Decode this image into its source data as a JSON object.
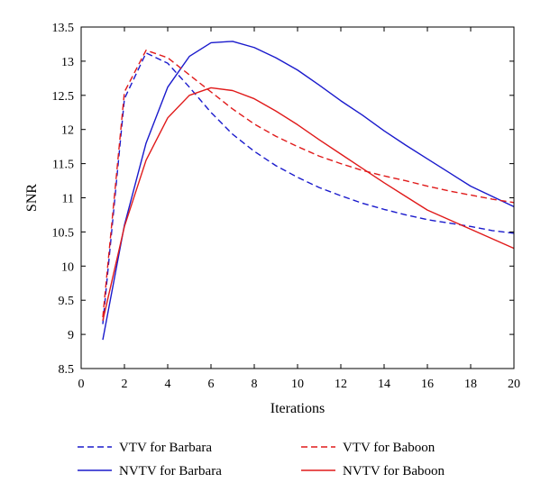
{
  "chart_data": {
    "type": "line",
    "title": "",
    "xlabel": "Iterations",
    "ylabel": "SNR",
    "xlim": [
      0,
      20
    ],
    "ylim": [
      8.5,
      13.5
    ],
    "xticks": [
      0,
      2,
      4,
      6,
      8,
      10,
      12,
      14,
      16,
      18,
      20
    ],
    "yticks": [
      8.5,
      9,
      9.5,
      10,
      10.5,
      11,
      11.5,
      12,
      12.5,
      13,
      13.5
    ],
    "ytick_labels": [
      "8.5",
      "9",
      "9.5",
      "10",
      "10.5",
      "11",
      "11.5",
      "12",
      "12.5",
      "13",
      "13.5"
    ],
    "grid": false,
    "legend_position": "bottom",
    "x": [
      1,
      2,
      3,
      4,
      5,
      6,
      7,
      8,
      9,
      10,
      11,
      12,
      13,
      14,
      15,
      16,
      17,
      18,
      19,
      20
    ],
    "series": [
      {
        "name": "VTV for Barbara",
        "color": "#1a1acc",
        "dash": "dashed",
        "values": [
          9.15,
          12.45,
          13.12,
          12.97,
          12.62,
          12.25,
          11.93,
          11.68,
          11.47,
          11.3,
          11.15,
          11.03,
          10.92,
          10.83,
          10.75,
          10.68,
          10.63,
          10.58,
          10.52,
          10.48
        ]
      },
      {
        "name": "NVTV for Barbara",
        "color": "#1a1acc",
        "dash": "solid",
        "values": [
          8.92,
          10.6,
          11.8,
          12.62,
          13.07,
          13.27,
          13.29,
          13.2,
          13.05,
          12.87,
          12.65,
          12.42,
          12.21,
          11.98,
          11.77,
          11.57,
          11.37,
          11.17,
          11.02,
          10.87
        ]
      },
      {
        "name": "VTV for Baboon",
        "color": "#e01a1a",
        "dash": "dashed",
        "values": [
          9.25,
          12.55,
          13.16,
          13.05,
          12.8,
          12.55,
          12.3,
          12.08,
          11.9,
          11.75,
          11.61,
          11.5,
          11.4,
          11.32,
          11.25,
          11.17,
          11.1,
          11.04,
          10.98,
          10.93
        ]
      },
      {
        "name": "NVTV for Baboon",
        "color": "#e01a1a",
        "dash": "solid",
        "values": [
          9.2,
          10.58,
          11.55,
          12.17,
          12.5,
          12.61,
          12.57,
          12.45,
          12.27,
          12.07,
          11.85,
          11.64,
          11.43,
          11.22,
          11.02,
          10.82,
          10.68,
          10.54,
          10.4,
          10.26
        ]
      }
    ],
    "legend": [
      {
        "label": "VTV for Barbara",
        "color": "#1a1acc",
        "dash": "dashed"
      },
      {
        "label": "VTV for Baboon",
        "color": "#e01a1a",
        "dash": "dashed"
      },
      {
        "label": "NVTV for Barbara",
        "color": "#1a1acc",
        "dash": "solid"
      },
      {
        "label": "NVTV for Baboon",
        "color": "#e01a1a",
        "dash": "solid"
      }
    ]
  }
}
